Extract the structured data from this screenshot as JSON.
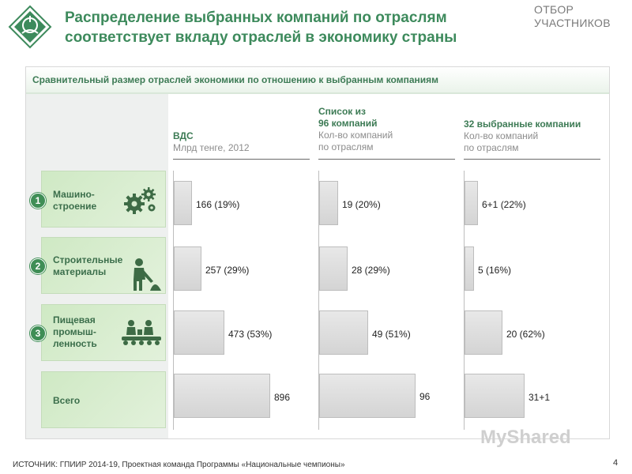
{
  "header": {
    "title_line1": "Распределение выбранных компаний по отраслям",
    "title_line2": "соответствует вкладу отраслей в экономику страны",
    "corner_line1": "ОТБОР",
    "corner_line2": "УЧАСТНИКОВ"
  },
  "panel": {
    "title": "Сравнительный размер отраслей экономики по отношению к выбранным компаниям"
  },
  "chart_data": {
    "type": "bar",
    "orientation": "horizontal",
    "categories": [
      "Машино-строение",
      "Строительные материалы",
      "Пищевая промыш-ленность",
      "Всего"
    ],
    "category_lines": [
      [
        "Машино-",
        "строение"
      ],
      [
        "Строительные",
        "материалы"
      ],
      [
        "Пищевая",
        "промыш-",
        "ленность"
      ],
      [
        "Всего"
      ]
    ],
    "category_numbers": [
      "1",
      "2",
      "3",
      ""
    ],
    "icons": [
      "gears-icon",
      "worker-icon",
      "factory-workers-icon",
      ""
    ],
    "series": [
      {
        "header_bold": "ВДС",
        "header_sub": [
          "Млрд тенге, 2012"
        ],
        "values": [
          166,
          257,
          473,
          896
        ],
        "labels": [
          "166 (19%)",
          "257 (29%)",
          "473 (53%)",
          "896"
        ],
        "max": 896
      },
      {
        "header_bold_lines": [
          "Список из",
          "96 компаний"
        ],
        "header_sub": [
          "Кол-во компаний",
          "по отраслям"
        ],
        "values": [
          19,
          28,
          49,
          96
        ],
        "labels": [
          "19 (20%)",
          "28 (29%)",
          "49 (51%)",
          "96"
        ],
        "max": 96
      },
      {
        "header_bold": "32 выбранные компании",
        "header_sub": [
          "Кол-во компаний",
          "по отраслям"
        ],
        "values": [
          7,
          5,
          20,
          32
        ],
        "labels": [
          "6+1 (22%)",
          "5 (16%)",
          "20 (62%)",
          "31+1"
        ],
        "max": 32
      }
    ]
  },
  "footer": {
    "source": "ИСТОЧНИК:  ГПИИР 2014-19, Проектная команда Программы «Национальные чемпионы»",
    "page_number": "4",
    "watermark": "MyShared"
  },
  "colors": {
    "title_green": "#3d8a5c",
    "badge_green": "#3f8e56",
    "category_bg": "#d6ecce",
    "bar_gray": "#dcdcdc"
  }
}
